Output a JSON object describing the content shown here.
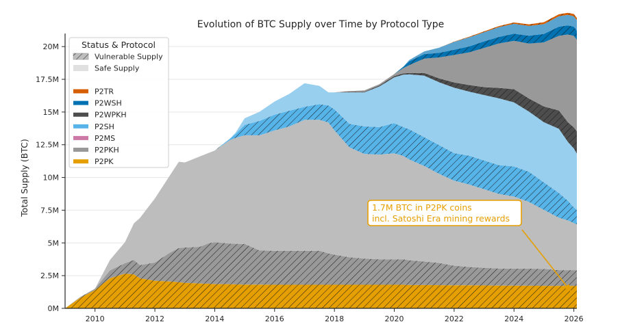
{
  "chart_data": {
    "type": "area",
    "stacked": true,
    "title": "Evolution of BTC Supply over Time by Protocol Type",
    "xlabel": "",
    "ylabel": "Total Supply (BTC)",
    "xlim": [
      2009.0,
      2026.1
    ],
    "ylim": [
      0,
      21000000
    ],
    "x_ticks": [
      2010,
      2012,
      2014,
      2016,
      2018,
      2020,
      2022,
      2024,
      2026
    ],
    "x_tick_labels": [
      "2010",
      "2012",
      "2014",
      "2016",
      "2018",
      "2020",
      "2022",
      "2024",
      "2026"
    ],
    "y_ticks": [
      0,
      2500000,
      5000000,
      7500000,
      10000000,
      12500000,
      15000000,
      17500000,
      20000000
    ],
    "y_tick_labels": [
      "0M",
      "2.5M",
      "5M",
      "7.5M",
      "10M",
      "12.5M",
      "15M",
      "17.5M",
      "20M"
    ],
    "grid": "horizontal",
    "legend": {
      "title": "Status & Protocol",
      "placement": "top-left",
      "status_entries": [
        {
          "label": "Vulnerable Supply",
          "style": "hatched",
          "color": "#BDBDBD"
        },
        {
          "label": "Safe Supply",
          "style": "solid",
          "color": "#E0E0E0"
        }
      ],
      "protocol_entries": [
        {
          "label": "P2TR",
          "color": "#D55E00"
        },
        {
          "label": "P2WSH",
          "color": "#0072B2"
        },
        {
          "label": "P2WPKH",
          "color": "#4D4D4D"
        },
        {
          "label": "P2SH",
          "color": "#56B4E9"
        },
        {
          "label": "P2MS",
          "color": "#CC79A7"
        },
        {
          "label": "P2PKH",
          "color": "#999999"
        },
        {
          "label": "P2PK",
          "color": "#E69F00"
        }
      ]
    },
    "x": [
      2009.0,
      2009.5,
      2010.0,
      2010.5,
      2011.0,
      2011.3,
      2011.5,
      2012.0,
      2012.5,
      2012.8,
      2013.0,
      2013.5,
      2013.8,
      2014.0,
      2014.5,
      2014.7,
      2015.0,
      2015.5,
      2016.0,
      2016.5,
      2017.0,
      2017.5,
      2017.8,
      2018.0,
      2018.5,
      2019.0,
      2019.5,
      2020.0,
      2020.3,
      2020.5,
      2021.0,
      2021.5,
      2022.0,
      2022.5,
      2023.0,
      2023.5,
      2024.0,
      2024.5,
      2025.0,
      2025.5,
      2025.8,
      2026.0,
      2026.1
    ],
    "series": [
      {
        "name": "P2PK",
        "status": "vulnerable",
        "color": "#E69F00",
        "values": [
          0.0,
          0.8,
          1.4,
          2.3,
          2.65,
          2.6,
          2.3,
          2.1,
          2.05,
          2.0,
          1.95,
          1.9,
          1.88,
          1.85,
          1.85,
          1.83,
          1.82,
          1.82,
          1.8,
          1.8,
          1.8,
          1.8,
          1.8,
          1.8,
          1.8,
          1.8,
          1.8,
          1.8,
          1.8,
          1.78,
          1.78,
          1.77,
          1.76,
          1.76,
          1.75,
          1.74,
          1.74,
          1.73,
          1.72,
          1.72,
          1.72,
          1.72,
          1.72
        ]
      },
      {
        "name": "P2PKH",
        "status": "vulnerable",
        "color": "#999999",
        "values": [
          0.0,
          0.05,
          0.1,
          0.6,
          0.8,
          1.1,
          1.0,
          1.4,
          2.2,
          2.6,
          2.7,
          2.8,
          3.1,
          3.2,
          3.1,
          3.1,
          3.1,
          2.6,
          2.6,
          2.6,
          2.6,
          2.6,
          2.4,
          2.3,
          2.1,
          2.0,
          1.95,
          1.95,
          1.95,
          1.9,
          1.8,
          1.7,
          1.5,
          1.4,
          1.35,
          1.3,
          1.3,
          1.3,
          1.3,
          1.2,
          1.2,
          1.2,
          1.2
        ]
      },
      {
        "name": "P2PKH",
        "status": "safe",
        "color": "#BDBDBD",
        "values": [
          0.0,
          0.0,
          0.0,
          0.8,
          1.6,
          2.8,
          3.6,
          4.9,
          5.9,
          6.6,
          6.5,
          6.9,
          6.9,
          7.0,
          7.9,
          8.1,
          8.3,
          8.8,
          9.2,
          9.5,
          10.0,
          10.0,
          10.0,
          9.5,
          8.4,
          8.0,
          8.0,
          8.1,
          7.9,
          7.7,
          7.3,
          6.8,
          6.5,
          6.3,
          6.0,
          5.7,
          5.5,
          5.1,
          4.5,
          4.0,
          3.8,
          3.6,
          3.5
        ]
      },
      {
        "name": "P2SH",
        "status": "vulnerable",
        "color": "#56B4E9",
        "values": [
          0.0,
          0.0,
          0.0,
          0.0,
          0.0,
          0.0,
          0.0,
          0.0,
          0.0,
          0.0,
          0.0,
          0.0,
          0.0,
          0.0,
          0.1,
          0.3,
          0.8,
          1.1,
          1.2,
          1.2,
          1.0,
          1.2,
          1.3,
          1.6,
          1.8,
          2.1,
          2.1,
          2.3,
          2.2,
          2.3,
          2.2,
          2.2,
          2.1,
          2.2,
          2.2,
          2.2,
          2.3,
          2.3,
          2.1,
          1.9,
          1.5,
          1.2,
          1.1
        ]
      },
      {
        "name": "P2SH",
        "status": "safe",
        "color": "#99CFEE",
        "values": [
          0.0,
          0.0,
          0.0,
          0.0,
          0.0,
          0.0,
          0.0,
          0.0,
          0.0,
          0.0,
          0.0,
          0.0,
          0.0,
          0.0,
          0.0,
          0.1,
          0.5,
          0.7,
          1.0,
          1.3,
          1.8,
          1.4,
          1.0,
          1.3,
          2.4,
          2.6,
          3.1,
          3.5,
          4.0,
          4.2,
          4.7,
          4.8,
          5.0,
          4.9,
          5.0,
          5.1,
          4.9,
          4.6,
          4.6,
          4.9,
          4.5,
          4.5,
          4.3
        ]
      },
      {
        "name": "P2WPKH",
        "status": "vulnerable",
        "color": "#4D4D4D",
        "values": [
          0.0,
          0.0,
          0.0,
          0.0,
          0.0,
          0.0,
          0.0,
          0.0,
          0.0,
          0.0,
          0.0,
          0.0,
          0.0,
          0.0,
          0.0,
          0.0,
          0.0,
          0.0,
          0.0,
          0.0,
          0.0,
          0.0,
          0.0,
          0.0,
          0.05,
          0.05,
          0.08,
          0.1,
          0.1,
          0.1,
          0.2,
          0.3,
          0.4,
          0.5,
          0.6,
          0.8,
          1.0,
          1.0,
          1.2,
          1.4,
          1.5,
          1.6,
          1.7
        ]
      },
      {
        "name": "P2WPKH",
        "status": "safe",
        "color": "#999999",
        "values": [
          0.0,
          0.0,
          0.0,
          0.0,
          0.0,
          0.0,
          0.0,
          0.0,
          0.0,
          0.0,
          0.0,
          0.0,
          0.0,
          0.0,
          0.0,
          0.0,
          0.0,
          0.0,
          0.0,
          0.0,
          0.0,
          0.0,
          0.0,
          0.0,
          0.05,
          0.1,
          0.1,
          0.15,
          0.4,
          0.6,
          1.1,
          1.6,
          2.1,
          2.5,
          3.0,
          3.4,
          3.7,
          4.2,
          4.9,
          5.7,
          6.7,
          7.0,
          7.0
        ]
      },
      {
        "name": "P2WSH",
        "status": "vulnerable",
        "color": "#0072B2",
        "values": [
          0.0,
          0.0,
          0.0,
          0.0,
          0.0,
          0.0,
          0.0,
          0.0,
          0.0,
          0.0,
          0.0,
          0.0,
          0.0,
          0.0,
          0.0,
          0.0,
          0.0,
          0.0,
          0.0,
          0.0,
          0.0,
          0.0,
          0.0,
          0.0,
          0.0,
          0.0,
          0.0,
          0.0,
          0.1,
          0.3,
          0.35,
          0.35,
          0.4,
          0.45,
          0.5,
          0.5,
          0.55,
          0.6,
          0.65,
          0.7,
          0.7,
          0.7,
          0.7
        ]
      },
      {
        "name": "P2WSH",
        "status": "safe",
        "color": "#5BA3CF",
        "values": [
          0.0,
          0.0,
          0.0,
          0.0,
          0.0,
          0.0,
          0.0,
          0.0,
          0.0,
          0.0,
          0.0,
          0.0,
          0.0,
          0.0,
          0.0,
          0.0,
          0.0,
          0.0,
          0.0,
          0.0,
          0.0,
          0.0,
          0.0,
          0.0,
          0.0,
          0.0,
          0.0,
          0.0,
          0.0,
          0.1,
          0.2,
          0.4,
          0.6,
          0.7,
          0.7,
          0.75,
          0.75,
          0.75,
          0.75,
          0.8,
          0.8,
          0.8,
          0.8
        ]
      },
      {
        "name": "P2TR",
        "status": "vulnerable",
        "color": "#D55E00",
        "values": [
          0.0,
          0.0,
          0.0,
          0.0,
          0.0,
          0.0,
          0.0,
          0.0,
          0.0,
          0.0,
          0.0,
          0.0,
          0.0,
          0.0,
          0.0,
          0.0,
          0.0,
          0.0,
          0.0,
          0.0,
          0.0,
          0.0,
          0.0,
          0.0,
          0.0,
          0.0,
          0.0,
          0.0,
          0.0,
          0.0,
          0.0,
          0.0,
          0.02,
          0.04,
          0.06,
          0.08,
          0.1,
          0.12,
          0.14,
          0.15,
          0.16,
          0.17,
          0.17
        ]
      }
    ],
    "values_unit": "million BTC",
    "annotation": {
      "text_line1": "1.7M BTC in P2PK coins",
      "text_line2": "incl. Satoshi Era mining rewards",
      "color": "#E69F00",
      "arrow_target_x": 2025.9,
      "arrow_target_y_million": 1.3
    }
  }
}
